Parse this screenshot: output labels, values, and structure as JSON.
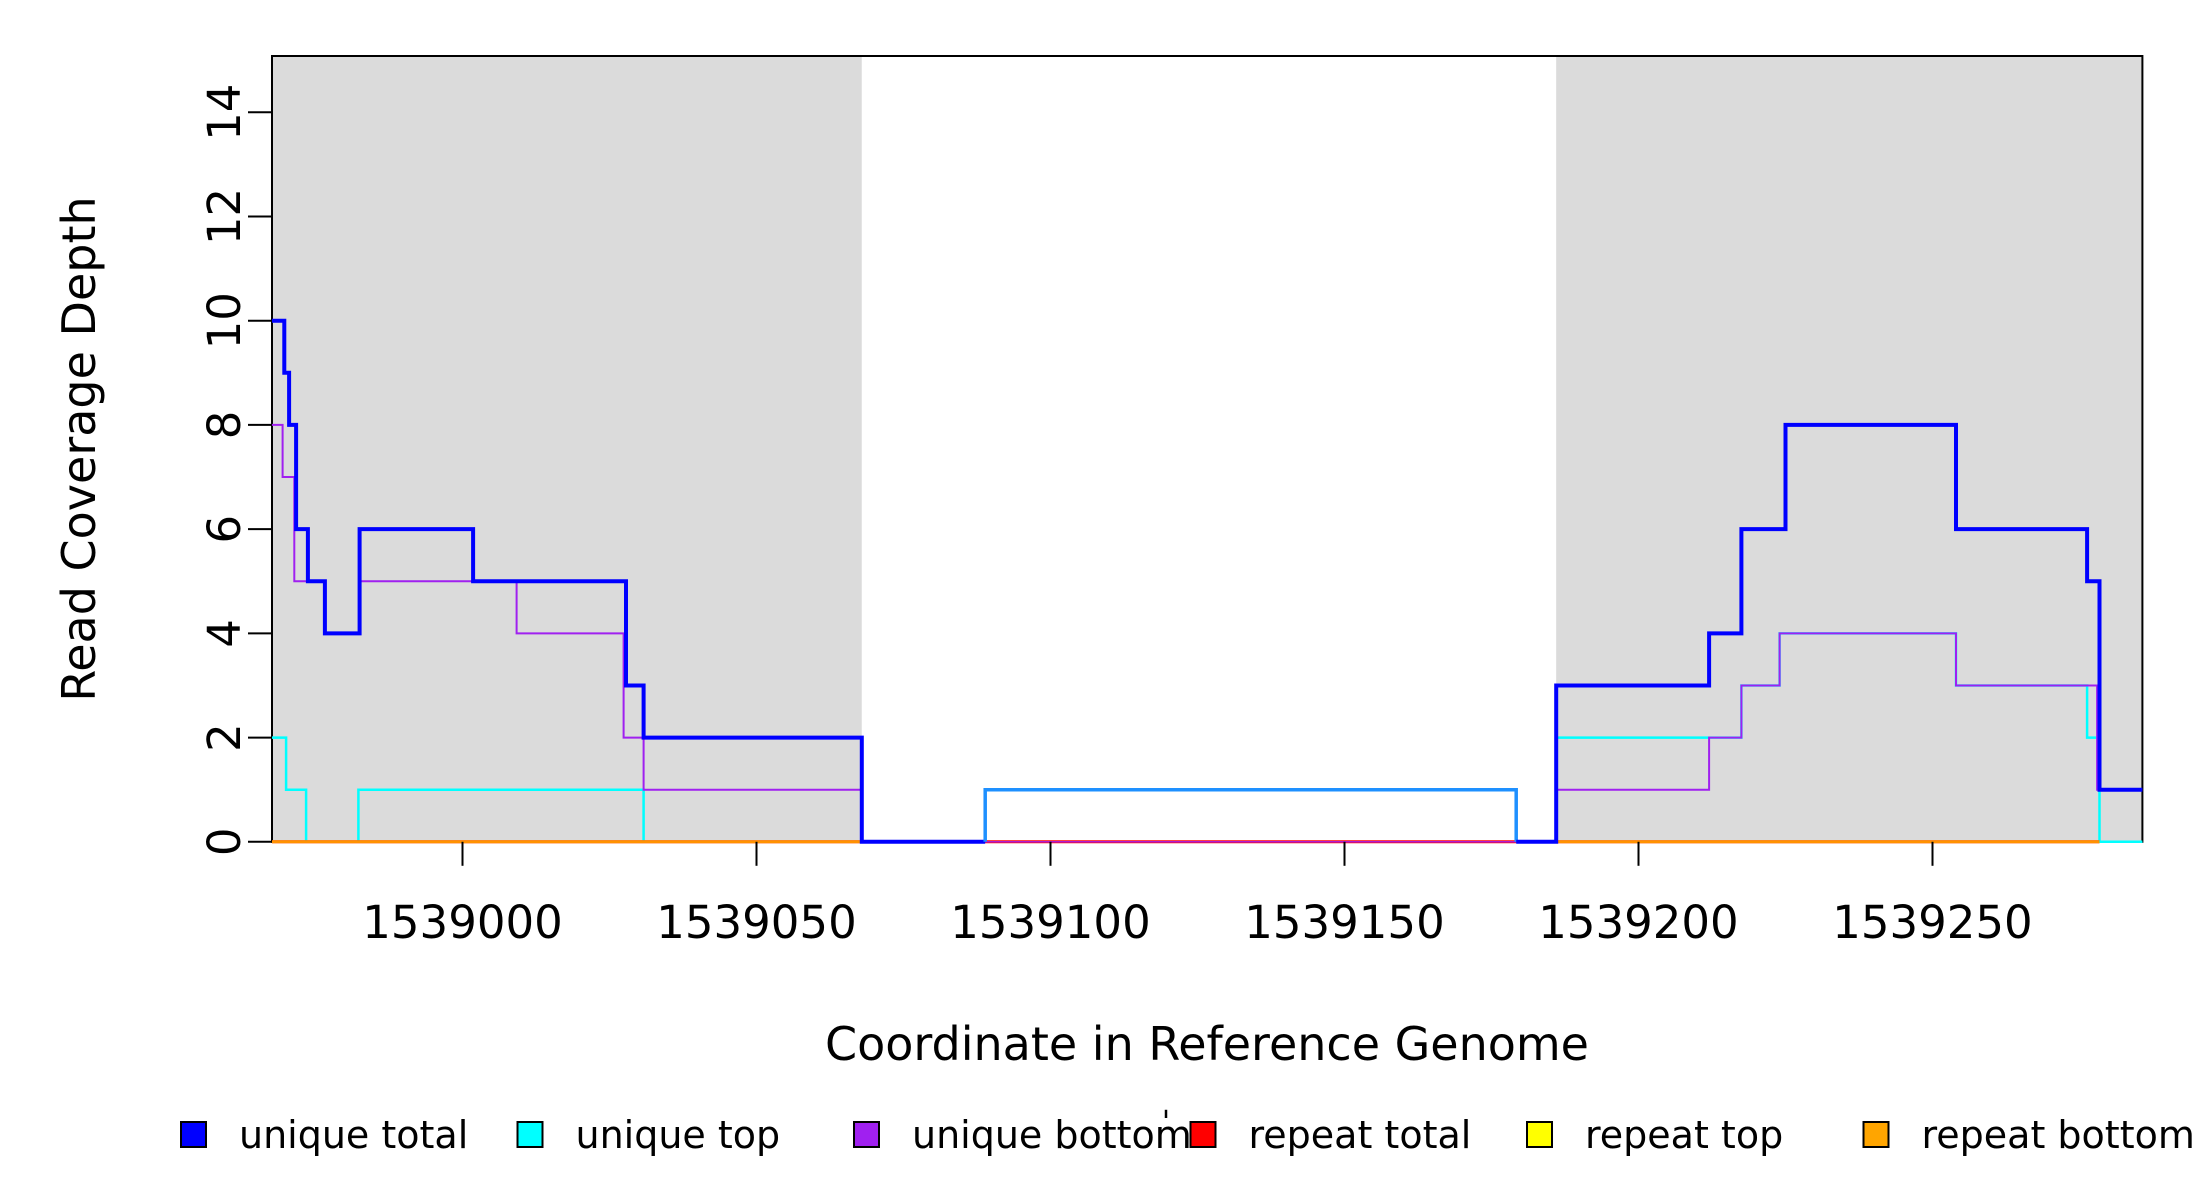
{
  "figure": {
    "background": "#FFFFFF"
  },
  "chart_data": {
    "type": "line",
    "subtype": "step-coverage-plot",
    "title": "",
    "xlabel": "Coordinate in Reference Genome",
    "ylabel": "Read Coverage Depth",
    "xlim": [
      1538967.6,
      1539285.7
    ],
    "ylim": [
      0,
      15.08
    ],
    "grid": false,
    "x_ticks": [
      1539000,
      1539050,
      1539100,
      1539150,
      1539200,
      1539250
    ],
    "y_ticks": [
      0,
      2,
      4,
      6,
      8,
      10,
      12,
      14
    ],
    "axis_color": "#000000",
    "shaded_regions": [
      {
        "name": "repeat-region-left",
        "x0": 1538967.6,
        "x1": 1539067.9,
        "color": "#DBDBDB"
      },
      {
        "name": "repeat-region-right",
        "x0": 1539186.0,
        "x1": 1539285.7,
        "color": "#DBDBDB"
      }
    ],
    "series": [
      {
        "name": "repeat top (left)",
        "legend": "repeat top",
        "color": "#FFFF00",
        "width": 2,
        "points": [
          [
            1538967.6,
            0
          ],
          [
            1539067.9,
            0
          ]
        ]
      },
      {
        "name": "repeat top (right)",
        "legend": "repeat top",
        "color": "#FFFF00",
        "width": 2,
        "points": [
          [
            1539186.0,
            0
          ],
          [
            1539278.4,
            0
          ]
        ]
      },
      {
        "name": "unique top",
        "legend": "unique top",
        "color": "#00FFFF",
        "width": 2.5,
        "points": [
          [
            1538967.6,
            2
          ],
          [
            1538970.0,
            1
          ],
          [
            1538973.4,
            0
          ],
          [
            1538982.3,
            1
          ],
          [
            1539030.8,
            0
          ],
          [
            1539088.9,
            1
          ],
          [
            1539179.2,
            0
          ],
          [
            1539186.0,
            2
          ],
          [
            1539217.5,
            3
          ],
          [
            1539224.0,
            4
          ],
          [
            1539254.0,
            3
          ],
          [
            1539276.3,
            2
          ],
          [
            1539278.4,
            0
          ],
          [
            1539285.7,
            0
          ]
        ]
      },
      {
        "name": "unique bottom",
        "legend": "unique bottom",
        "color": "#A020F0",
        "width": 2,
        "points": [
          [
            1538967.6,
            8
          ],
          [
            1538969.4,
            7
          ],
          [
            1538971.4,
            5
          ],
          [
            1538976.6,
            4
          ],
          [
            1538982.5,
            5
          ],
          [
            1539009.2,
            4
          ],
          [
            1539027.4,
            2
          ],
          [
            1539030.8,
            1
          ],
          [
            1539067.9,
            0
          ],
          [
            1539186.0,
            1
          ],
          [
            1539212.0,
            2
          ],
          [
            1539217.5,
            3
          ],
          [
            1539224.0,
            4
          ],
          [
            1539254.0,
            3
          ],
          [
            1539278.0,
            1
          ],
          [
            1539285.7,
            1
          ]
        ]
      },
      {
        "name": "repeat total (left)",
        "legend": "repeat total",
        "color": "#FF0000",
        "width": 3,
        "points": [
          [
            1538967.6,
            0
          ],
          [
            1539067.9,
            0
          ]
        ]
      },
      {
        "name": "repeat total (middle)",
        "legend": "repeat total",
        "color": "#FF0000",
        "width": 3,
        "points": [
          [
            1539088.9,
            0
          ],
          [
            1539179.2,
            0
          ]
        ]
      },
      {
        "name": "repeat total (right)",
        "legend": "repeat total",
        "color": "#FF0000",
        "width": 3,
        "points": [
          [
            1539186.0,
            0
          ],
          [
            1539278.4,
            0
          ]
        ]
      },
      {
        "name": "unique bottom overlay (middle)",
        "legend": "unique bottom",
        "color": "#A020F0",
        "width": 1.4,
        "points": [
          [
            1539088.9,
            0
          ],
          [
            1539179.2,
            0
          ]
        ]
      },
      {
        "name": "repeat bottom (left)",
        "legend": "repeat bottom",
        "color": "#FF9200",
        "width": 3,
        "points": [
          [
            1538967.6,
            0
          ],
          [
            1539067.9,
            0
          ]
        ]
      },
      {
        "name": "repeat bottom (right)",
        "legend": "repeat bottom",
        "color": "#FF9200",
        "width": 3,
        "points": [
          [
            1539186.0,
            0
          ],
          [
            1539278.4,
            0
          ]
        ]
      },
      {
        "name": "unique total (left)",
        "legend": "unique total",
        "color": "#0000FF",
        "width": 4,
        "points": [
          [
            1538967.6,
            10
          ],
          [
            1538969.7,
            9
          ],
          [
            1538970.5,
            8
          ],
          [
            1538971.7,
            6
          ],
          [
            1538973.7,
            5
          ],
          [
            1538976.6,
            4
          ],
          [
            1538982.5,
            6
          ],
          [
            1539001.8,
            5
          ],
          [
            1539027.8,
            3
          ],
          [
            1539030.8,
            2
          ],
          [
            1539067.9,
            0
          ],
          [
            1539088.9,
            0
          ]
        ]
      },
      {
        "name": "unique total (gap segment)",
        "legend": "unique total",
        "color": "#1E90FF",
        "width": 3.5,
        "points": [
          [
            1539088.9,
            0
          ],
          [
            1539088.9,
            1
          ],
          [
            1539179.2,
            1
          ],
          [
            1539179.2,
            0
          ]
        ]
      },
      {
        "name": "unique total (right)",
        "legend": "unique total",
        "color": "#0000FF",
        "width": 4,
        "points": [
          [
            1539179.2,
            0
          ],
          [
            1539186.0,
            3
          ],
          [
            1539212.0,
            4
          ],
          [
            1539217.5,
            6
          ],
          [
            1539225.0,
            8
          ],
          [
            1539254.0,
            6
          ],
          [
            1539276.3,
            5
          ],
          [
            1539278.4,
            1
          ],
          [
            1539285.7,
            1
          ]
        ]
      }
    ],
    "legend": {
      "position": "bottom",
      "items": [
        {
          "label": "unique total",
          "color": "#0000FF"
        },
        {
          "label": "unique top",
          "color": "#00FFFF"
        },
        {
          "label": "unique bottom",
          "color": "#A020F0"
        },
        {
          "label": "repeat total",
          "color": "#FF0000"
        },
        {
          "label": "repeat top",
          "color": "#FFFF00"
        },
        {
          "label": "repeat bottom",
          "color": "#FFA500"
        }
      ],
      "stray_mark": "'"
    }
  }
}
